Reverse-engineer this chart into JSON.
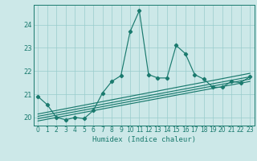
{
  "title": "",
  "xlabel": "Humidex (Indice chaleur)",
  "background_color": "#cce8e8",
  "grid_color": "#99cccc",
  "line_color": "#1a7a6e",
  "xlim": [
    -0.5,
    23.5
  ],
  "ylim": [
    19.65,
    24.85
  ],
  "yticks": [
    20,
    21,
    22,
    23,
    24
  ],
  "xticks": [
    0,
    1,
    2,
    3,
    4,
    5,
    6,
    7,
    8,
    9,
    10,
    11,
    12,
    13,
    14,
    15,
    16,
    17,
    18,
    19,
    20,
    21,
    22,
    23
  ],
  "main_x": [
    0,
    1,
    2,
    3,
    4,
    5,
    6,
    7,
    8,
    9,
    10,
    11,
    12,
    13,
    14,
    15,
    16,
    17,
    18,
    19,
    20,
    21,
    22,
    23
  ],
  "main_y": [
    20.9,
    20.55,
    20.0,
    19.9,
    20.0,
    19.95,
    20.3,
    21.05,
    21.55,
    21.8,
    23.7,
    24.6,
    21.85,
    21.7,
    21.7,
    23.1,
    22.75,
    21.85,
    21.65,
    21.3,
    21.3,
    21.55,
    21.5,
    21.75
  ],
  "reg_lines": [
    {
      "x0": 0,
      "y0": 19.85,
      "x1": 23,
      "y1": 21.55
    },
    {
      "x0": 0,
      "y0": 19.95,
      "x1": 23,
      "y1": 21.65
    },
    {
      "x0": 0,
      "y0": 20.05,
      "x1": 23,
      "y1": 21.75
    },
    {
      "x0": 0,
      "y0": 20.15,
      "x1": 23,
      "y1": 21.9
    }
  ]
}
